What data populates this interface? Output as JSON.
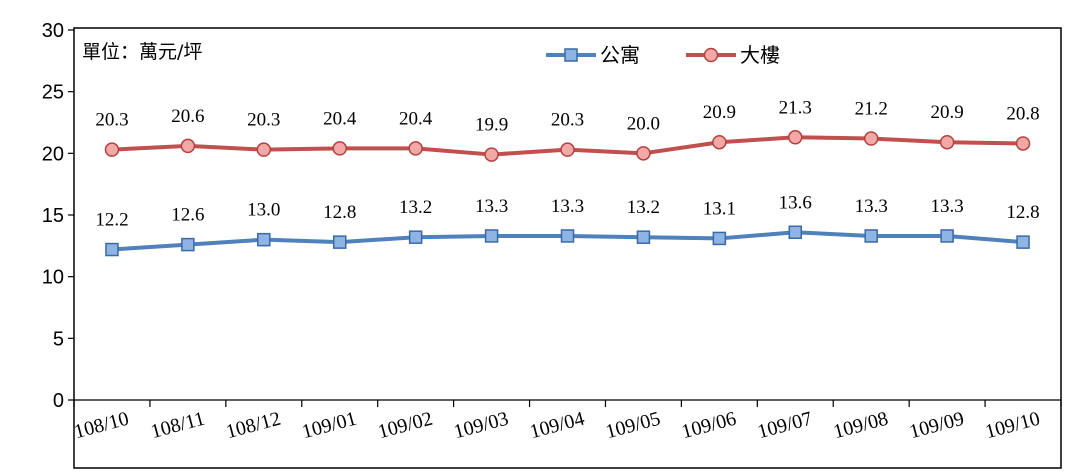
{
  "chart_data": {
    "type": "line",
    "title": "",
    "xlabel": "",
    "ylabel": "",
    "unit_note": "單位：萬元/坪",
    "categories": [
      "108/10",
      "108/11",
      "108/12",
      "109/01",
      "109/02",
      "109/03",
      "109/04",
      "109/05",
      "109/06",
      "109/07",
      "109/08",
      "109/09",
      "109/10"
    ],
    "ylim": [
      0,
      30
    ],
    "yticks": [
      "0",
      "5",
      "10",
      "15",
      "20",
      "25",
      "30"
    ],
    "legend_position": "top-center",
    "grid": false,
    "series": [
      {
        "name": "公寓",
        "color": "#4F81BD",
        "marker": "square",
        "values": [
          12.2,
          12.6,
          13.0,
          12.8,
          13.2,
          13.3,
          13.3,
          13.2,
          13.1,
          13.6,
          13.3,
          13.3,
          12.8
        ],
        "labels": [
          "12.2",
          "12.6",
          "13.0",
          "12.8",
          "13.2",
          "13.3",
          "13.3",
          "13.2",
          "13.1",
          "13.6",
          "13.3",
          "13.3",
          "12.8"
        ]
      },
      {
        "name": "大樓",
        "color": "#C0504D",
        "marker": "circle",
        "values": [
          20.3,
          20.6,
          20.3,
          20.4,
          20.4,
          19.9,
          20.3,
          20.0,
          20.9,
          21.3,
          21.2,
          20.9,
          20.8
        ],
        "labels": [
          "20.3",
          "20.6",
          "20.3",
          "20.4",
          "20.4",
          "19.9",
          "20.3",
          "20.0",
          "20.9",
          "21.3",
          "21.2",
          "20.9",
          "20.8"
        ]
      }
    ]
  }
}
